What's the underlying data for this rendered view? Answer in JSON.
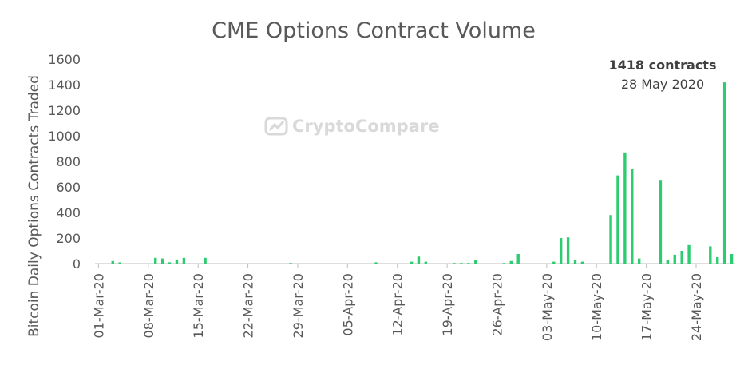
{
  "chart_data": {
    "type": "bar",
    "title": "CME Options Contract Volume",
    "xlabel": "",
    "ylabel": "Bitcoin Daily Options Contracts Traded",
    "ylim": [
      0,
      1600
    ],
    "yticks": [
      0,
      200,
      400,
      600,
      800,
      1000,
      1200,
      1400,
      1600
    ],
    "grid": false,
    "bar_color": "#2ecc71",
    "x_tick_labels": [
      "01-Mar-20",
      "08-Mar-20",
      "15-Mar-20",
      "22-Mar-20",
      "29-Mar-20",
      "05-Apr-20",
      "12-Apr-20",
      "19-Apr-20",
      "26-Apr-20",
      "03-May-20",
      "10-May-20",
      "17-May-20",
      "24-May-20"
    ],
    "categories": [
      "01-Mar-20",
      "02-Mar-20",
      "03-Mar-20",
      "04-Mar-20",
      "05-Mar-20",
      "06-Mar-20",
      "07-Mar-20",
      "08-Mar-20",
      "09-Mar-20",
      "10-Mar-20",
      "11-Mar-20",
      "12-Mar-20",
      "13-Mar-20",
      "14-Mar-20",
      "15-Mar-20",
      "16-Mar-20",
      "17-Mar-20",
      "18-Mar-20",
      "19-Mar-20",
      "20-Mar-20",
      "21-Mar-20",
      "22-Mar-20",
      "23-Mar-20",
      "24-Mar-20",
      "25-Mar-20",
      "26-Mar-20",
      "27-Mar-20",
      "28-Mar-20",
      "29-Mar-20",
      "30-Mar-20",
      "31-Mar-20",
      "01-Apr-20",
      "02-Apr-20",
      "03-Apr-20",
      "04-Apr-20",
      "05-Apr-20",
      "06-Apr-20",
      "07-Apr-20",
      "08-Apr-20",
      "09-Apr-20",
      "10-Apr-20",
      "11-Apr-20",
      "12-Apr-20",
      "13-Apr-20",
      "14-Apr-20",
      "15-Apr-20",
      "16-Apr-20",
      "17-Apr-20",
      "18-Apr-20",
      "19-Apr-20",
      "20-Apr-20",
      "21-Apr-20",
      "22-Apr-20",
      "23-Apr-20",
      "24-Apr-20",
      "25-Apr-20",
      "26-Apr-20",
      "27-Apr-20",
      "28-Apr-20",
      "29-Apr-20",
      "30-Apr-20",
      "01-May-20",
      "02-May-20",
      "03-May-20",
      "04-May-20",
      "05-May-20",
      "06-May-20",
      "07-May-20",
      "08-May-20",
      "09-May-20",
      "10-May-20",
      "11-May-20",
      "12-May-20",
      "13-May-20",
      "14-May-20",
      "15-May-20",
      "16-May-20",
      "17-May-20",
      "18-May-20",
      "19-May-20",
      "20-May-20",
      "21-May-20",
      "22-May-20",
      "23-May-20",
      "24-May-20",
      "25-May-20",
      "26-May-20",
      "27-May-20",
      "28-May-20",
      "29-May-20"
    ],
    "values": [
      0,
      0,
      20,
      10,
      0,
      0,
      0,
      0,
      45,
      40,
      10,
      30,
      45,
      0,
      0,
      45,
      0,
      0,
      0,
      0,
      0,
      0,
      0,
      0,
      0,
      0,
      0,
      5,
      0,
      0,
      0,
      0,
      0,
      0,
      0,
      0,
      0,
      0,
      0,
      10,
      0,
      0,
      0,
      0,
      15,
      55,
      15,
      0,
      0,
      0,
      5,
      5,
      5,
      30,
      0,
      0,
      0,
      5,
      20,
      75,
      0,
      0,
      0,
      0,
      15,
      200,
      205,
      25,
      15,
      0,
      0,
      0,
      380,
      690,
      870,
      740,
      40,
      0,
      0,
      655,
      30,
      70,
      100,
      145,
      0,
      0,
      135,
      50,
      1418,
      75
    ],
    "annotation": {
      "label": "1418 contracts",
      "date": "28 May 2020"
    },
    "watermark": "CryptoCompare"
  }
}
